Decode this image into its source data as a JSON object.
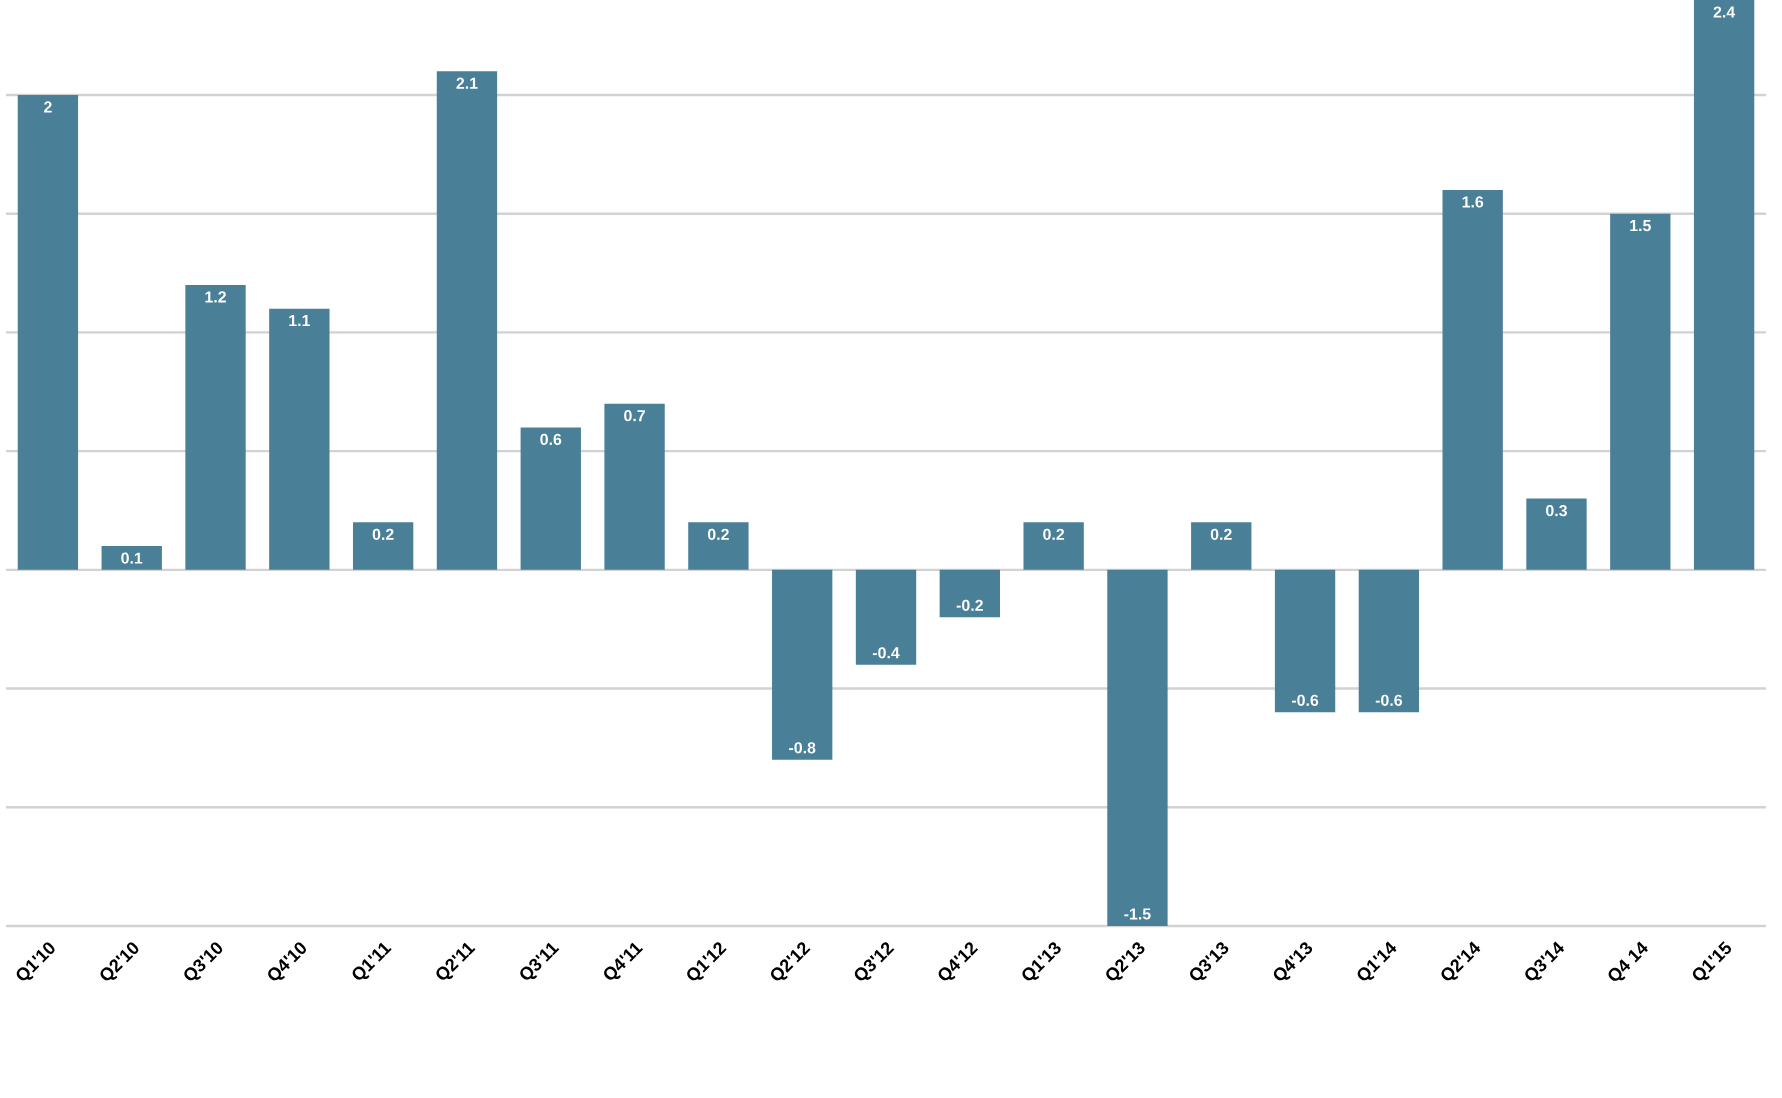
{
  "chart_data": {
    "type": "bar",
    "categories": [
      "Q1'10",
      "Q2'10",
      "Q3'10",
      "Q4'10",
      "Q1'11",
      "Q2'11",
      "Q3'11",
      "Q4'11",
      "Q1'12",
      "Q2'12",
      "Q3'12",
      "Q4'12",
      "Q1'13",
      "Q2'13",
      "Q3'13",
      "Q4'13",
      "Q1'14",
      "Q2'14",
      "Q3'14",
      "Q4 14",
      "Q1'15"
    ],
    "values": [
      2,
      0.1,
      1.2,
      1.1,
      0.2,
      2.1,
      0.6,
      0.7,
      0.2,
      -0.8,
      -0.4,
      -0.2,
      0.2,
      -1.5,
      0.2,
      -0.6,
      -0.6,
      1.6,
      0.3,
      1.5,
      2.4
    ],
    "color": "#4a7f98",
    "grid": "y",
    "tick_labels": "x",
    "data_labels": true
  }
}
